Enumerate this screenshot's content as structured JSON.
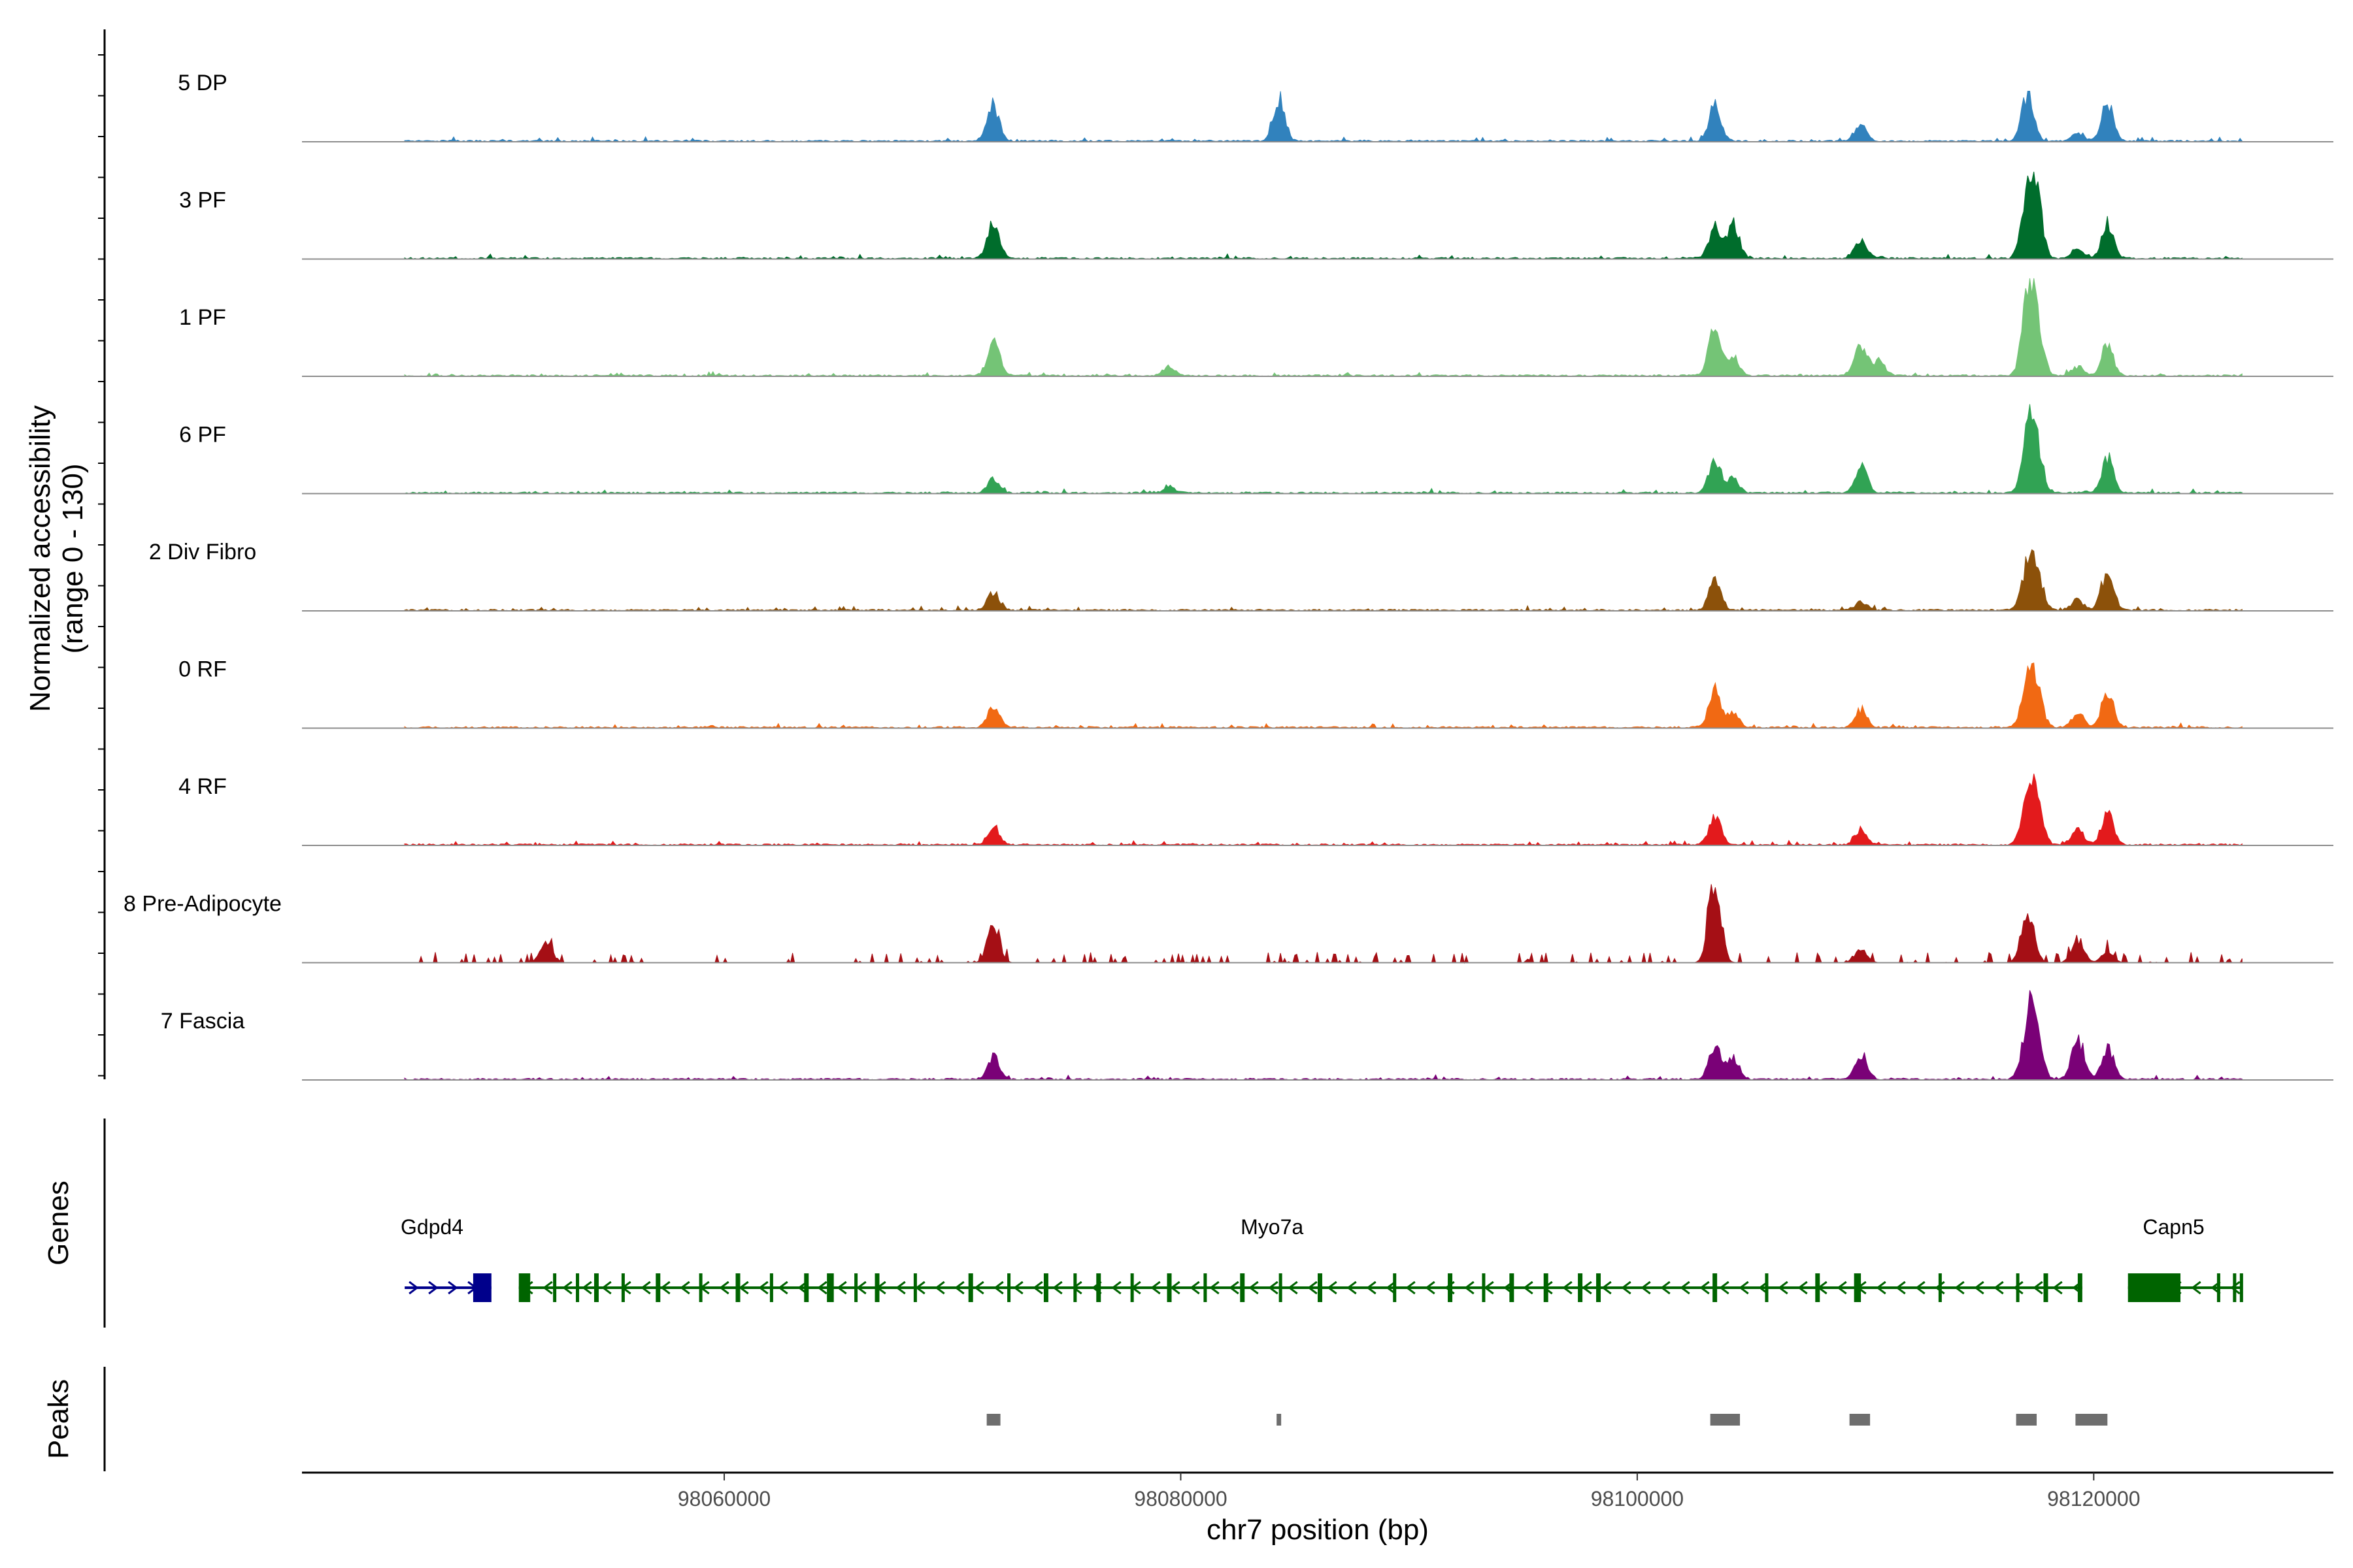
{
  "chart_data": {
    "type": "area",
    "title": "",
    "track_ylabel": "Normalized accessibility",
    "track_ylabel_range": "(range 0 - 130)",
    "yrange": [
      0,
      130
    ],
    "genes_label": "Genes",
    "peaks_label": "Peaks",
    "xlabel": "chr7 position (bp)",
    "xlim": [
      98041500,
      98130500
    ],
    "xticks": [
      98060000,
      98080000,
      98100000,
      98120000
    ],
    "xtick_labels": [
      "98060000",
      "98080000",
      "98100000",
      "98120000"
    ],
    "region": [
      98046000,
      98126500
    ],
    "grid": false,
    "tracks": [
      {
        "name": "5 DP",
        "color": "#3182bd",
        "peaks": [
          [
            98071800,
            45
          ],
          [
            98084300,
            55
          ],
          [
            98103400,
            45
          ],
          [
            98109800,
            22
          ],
          [
            98117100,
            60
          ],
          [
            98120600,
            50
          ],
          [
            98119300,
            10
          ]
        ]
      },
      {
        "name": "3 PF",
        "color": "#006d2c",
        "peaks": [
          [
            98071800,
            45
          ],
          [
            98103400,
            40
          ],
          [
            98104200,
            45
          ],
          [
            98109800,
            25
          ],
          [
            98117100,
            85
          ],
          [
            98117500,
            70
          ],
          [
            98120600,
            45
          ],
          [
            98119300,
            15
          ]
        ]
      },
      {
        "name": "1 PF",
        "color": "#74c476",
        "peaks": [
          [
            98071800,
            45
          ],
          [
            98079500,
            12
          ],
          [
            98103400,
            65
          ],
          [
            98104200,
            25
          ],
          [
            98109800,
            40
          ],
          [
            98110600,
            20
          ],
          [
            98117100,
            90
          ],
          [
            98117500,
            70
          ],
          [
            98120600,
            40
          ],
          [
            98119300,
            12
          ]
        ]
      },
      {
        "name": "6 PF",
        "color": "#31a354",
        "peaks": [
          [
            98071800,
            18
          ],
          [
            98079500,
            8
          ],
          [
            98103400,
            42
          ],
          [
            98104200,
            20
          ],
          [
            98109800,
            36
          ],
          [
            98117100,
            70
          ],
          [
            98117500,
            60
          ],
          [
            98120600,
            45
          ]
        ]
      },
      {
        "name": "2 Div Fibro",
        "color": "#8c510a",
        "peaks": [
          [
            98071800,
            24
          ],
          [
            98103400,
            40
          ],
          [
            98109800,
            10
          ],
          [
            98117100,
            55
          ],
          [
            98117500,
            50
          ],
          [
            98120600,
            50
          ],
          [
            98119300,
            14
          ]
        ]
      },
      {
        "name": "0 RF",
        "color": "#f16913",
        "peaks": [
          [
            98071800,
            28
          ],
          [
            98103400,
            48
          ],
          [
            98104200,
            20
          ],
          [
            98109800,
            24
          ],
          [
            98117100,
            55
          ],
          [
            98117500,
            50
          ],
          [
            98120600,
            50
          ],
          [
            98119300,
            18
          ]
        ]
      },
      {
        "name": "4 RF",
        "color": "#e31a1c",
        "peaks": [
          [
            98071800,
            24
          ],
          [
            98103400,
            40
          ],
          [
            98109800,
            20
          ],
          [
            98117100,
            60
          ],
          [
            98117500,
            55
          ],
          [
            98120600,
            42
          ],
          [
            98119300,
            20
          ]
        ]
      },
      {
        "name": "8 Pre-Adipocyte",
        "color": "#a50f15",
        "peaks": [
          [
            98052200,
            30
          ],
          [
            98071800,
            55
          ],
          [
            98103400,
            110
          ],
          [
            98109800,
            20
          ],
          [
            98117100,
            75
          ],
          [
            98119300,
            30
          ],
          [
            98120600,
            15
          ]
        ]
      },
      {
        "name": "7 Fascia",
        "color": "#7a0177",
        "peaks": [
          [
            98071800,
            30
          ],
          [
            98103400,
            45
          ],
          [
            98104200,
            30
          ],
          [
            98109800,
            35
          ],
          [
            98117100,
            70
          ],
          [
            98117500,
            60
          ],
          [
            98119300,
            55
          ],
          [
            98120600,
            42
          ]
        ]
      }
    ],
    "genes": [
      {
        "name": "Gdpd4",
        "start": 98046000,
        "end": 98049800,
        "strand": "+",
        "color": "#00008b",
        "exons": [
          [
            98049000,
            98049800
          ]
        ]
      },
      {
        "name": "Myo7a",
        "start": 98051000,
        "end": 98119500,
        "strand": "-",
        "color": "#006400",
        "exons": [
          [
            98051000,
            98051500
          ],
          [
            98052500,
            98052600
          ],
          [
            98053500,
            98053600
          ],
          [
            98054300,
            98054500
          ],
          [
            98055500,
            98055600
          ],
          [
            98057000,
            98057200
          ],
          [
            98058900,
            98059000
          ],
          [
            98060500,
            98060700
          ],
          [
            98062000,
            98062100
          ],
          [
            98063500,
            98063700
          ],
          [
            98064500,
            98064800
          ],
          [
            98065700,
            98065800
          ],
          [
            98066600,
            98066800
          ],
          [
            98068300,
            98068400
          ],
          [
            98070700,
            98070900
          ],
          [
            98072400,
            98072500
          ],
          [
            98074000,
            98074200
          ],
          [
            98075300,
            98075400
          ],
          [
            98076300,
            98076500
          ],
          [
            98077800,
            98077900
          ],
          [
            98079400,
            98079600
          ],
          [
            98081000,
            98081100
          ],
          [
            98082600,
            98082800
          ],
          [
            98084300,
            98084400
          ],
          [
            98086000,
            98086200
          ],
          [
            98089300,
            98089400
          ],
          [
            98091700,
            98091900
          ],
          [
            98093200,
            98093300
          ],
          [
            98094400,
            98094600
          ],
          [
            98095900,
            98096100
          ],
          [
            98097400,
            98097600
          ],
          [
            98098200,
            98098400
          ],
          [
            98103300,
            98103500
          ],
          [
            98105600,
            98105700
          ],
          [
            98107800,
            98108000
          ],
          [
            98109500,
            98109800
          ],
          [
            98113200,
            98113300
          ],
          [
            98116600,
            98116700
          ],
          [
            98117800,
            98118000
          ],
          [
            98119300,
            98119500
          ]
        ]
      },
      {
        "name": "Capn5",
        "start": 98121500,
        "end": 98126500,
        "strand": "-",
        "color": "#006400",
        "exons": [
          [
            98121500,
            98123800
          ],
          [
            98125400,
            98125500
          ],
          [
            98126100,
            98126200
          ],
          [
            98126400,
            98126500
          ]
        ]
      }
    ],
    "peaks": [
      [
        98071500,
        98072100
      ],
      [
        98084200,
        98084400
      ],
      [
        98103200,
        98104500
      ],
      [
        98109300,
        98110200
      ],
      [
        98116600,
        98117500
      ],
      [
        98119200,
        98120600
      ]
    ]
  }
}
